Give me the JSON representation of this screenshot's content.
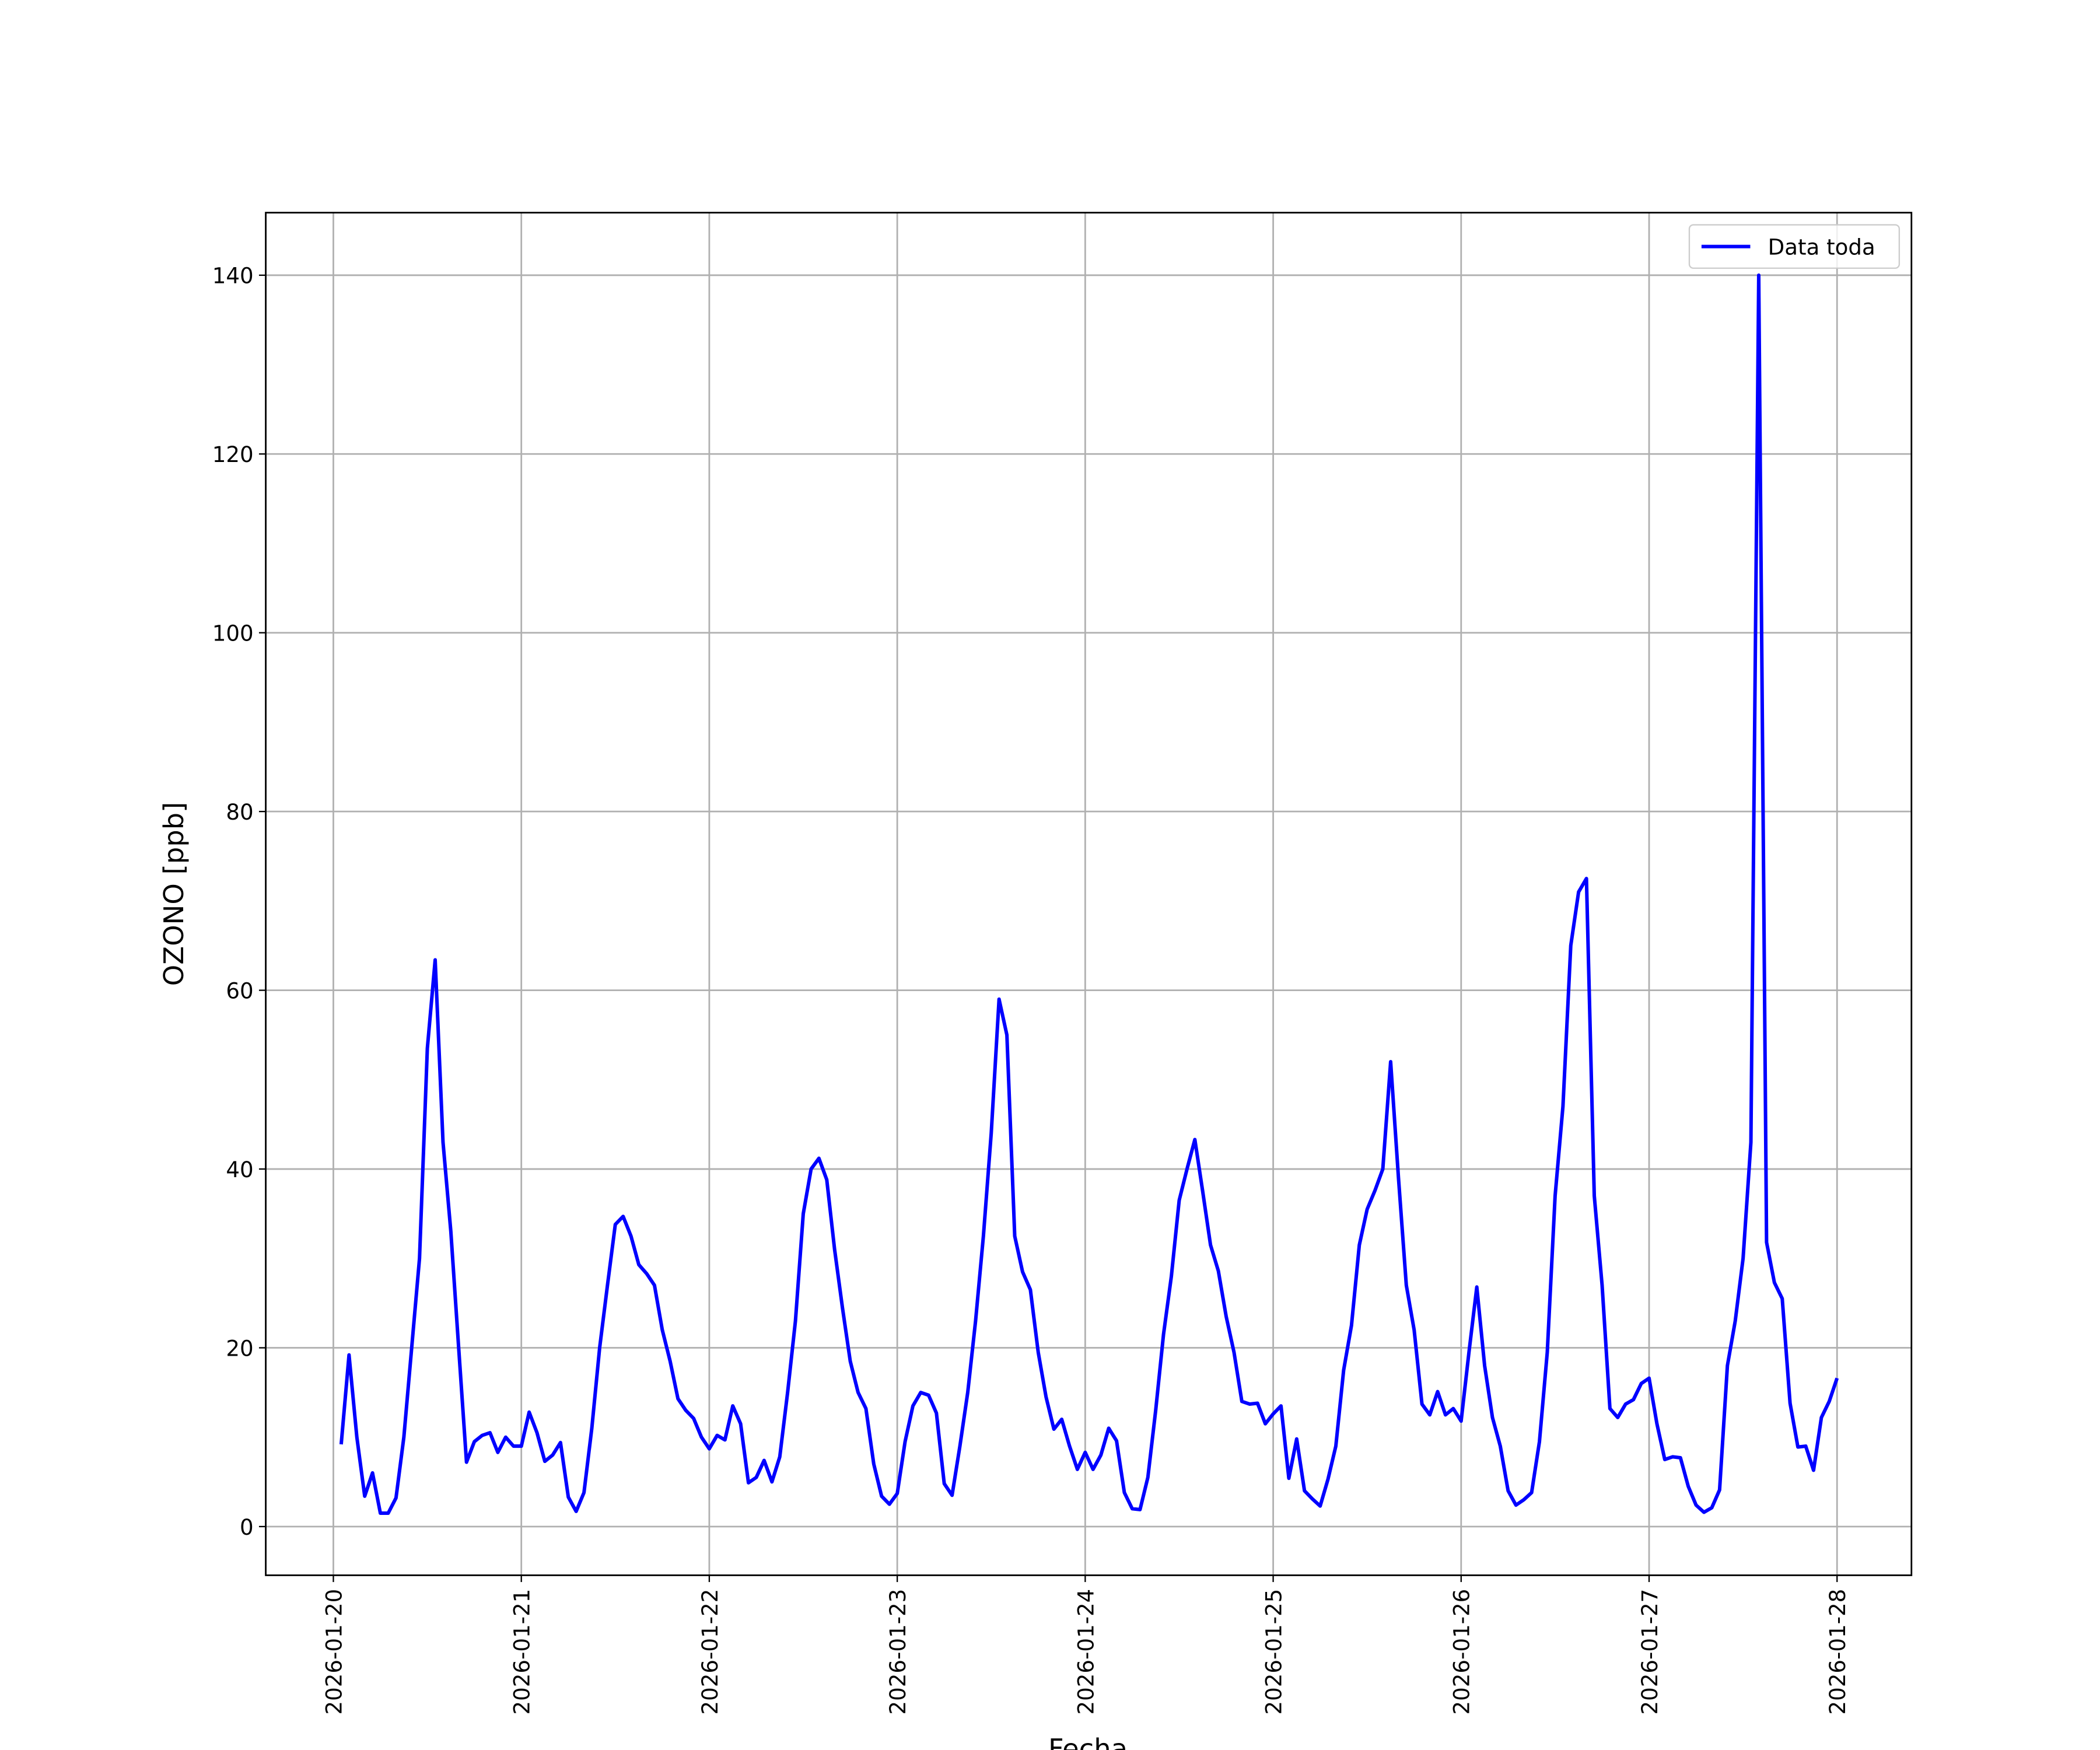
{
  "chart_data": {
    "type": "line",
    "xlabel": "Fecha",
    "ylabel": "OZONO [ppb]",
    "x": [
      "2026-01-20 01:00",
      "2026-01-20 02:00",
      "2026-01-20 03:00",
      "2026-01-20 04:00",
      "2026-01-20 05:00",
      "2026-01-20 06:00",
      "2026-01-20 07:00",
      "2026-01-20 08:00",
      "2026-01-20 09:00",
      "2026-01-20 10:00",
      "2026-01-20 11:00",
      "2026-01-20 12:00",
      "2026-01-20 13:00",
      "2026-01-20 14:00",
      "2026-01-20 15:00",
      "2026-01-20 16:00",
      "2026-01-20 17:00",
      "2026-01-20 18:00",
      "2026-01-20 19:00",
      "2026-01-20 20:00",
      "2026-01-20 21:00",
      "2026-01-20 22:00",
      "2026-01-20 23:00",
      "2026-01-21 00:00",
      "2026-01-21 01:00",
      "2026-01-21 02:00",
      "2026-01-21 03:00",
      "2026-01-21 04:00",
      "2026-01-21 05:00",
      "2026-01-21 06:00",
      "2026-01-21 07:00",
      "2026-01-21 08:00",
      "2026-01-21 09:00",
      "2026-01-21 10:00",
      "2026-01-21 11:00",
      "2026-01-21 12:00",
      "2026-01-21 13:00",
      "2026-01-21 14:00",
      "2026-01-21 15:00",
      "2026-01-21 16:00",
      "2026-01-21 17:00",
      "2026-01-21 18:00",
      "2026-01-21 19:00",
      "2026-01-21 20:00",
      "2026-01-21 21:00",
      "2026-01-21 22:00",
      "2026-01-21 23:00",
      "2026-01-22 00:00",
      "2026-01-22 01:00",
      "2026-01-22 02:00",
      "2026-01-22 03:00",
      "2026-01-22 04:00",
      "2026-01-22 05:00",
      "2026-01-22 06:00",
      "2026-01-22 07:00",
      "2026-01-22 08:00",
      "2026-01-22 09:00",
      "2026-01-22 10:00",
      "2026-01-22 11:00",
      "2026-01-22 12:00",
      "2026-01-22 13:00",
      "2026-01-22 14:00",
      "2026-01-22 15:00",
      "2026-01-22 16:00",
      "2026-01-22 17:00",
      "2026-01-22 18:00",
      "2026-01-22 19:00",
      "2026-01-22 20:00",
      "2026-01-22 21:00",
      "2026-01-22 22:00",
      "2026-01-22 23:00",
      "2026-01-23 00:00",
      "2026-01-23 01:00",
      "2026-01-23 02:00",
      "2026-01-23 03:00",
      "2026-01-23 04:00",
      "2026-01-23 05:00",
      "2026-01-23 06:00",
      "2026-01-23 07:00",
      "2026-01-23 08:00",
      "2026-01-23 09:00",
      "2026-01-23 10:00",
      "2026-01-23 11:00",
      "2026-01-23 12:00",
      "2026-01-23 13:00",
      "2026-01-23 14:00",
      "2026-01-23 15:00",
      "2026-01-23 16:00",
      "2026-01-23 17:00",
      "2026-01-23 18:00",
      "2026-01-23 19:00",
      "2026-01-23 20:00",
      "2026-01-23 21:00",
      "2026-01-23 22:00",
      "2026-01-23 23:00",
      "2026-01-24 00:00",
      "2026-01-24 01:00",
      "2026-01-24 02:00",
      "2026-01-24 03:00",
      "2026-01-24 04:00",
      "2026-01-24 05:00",
      "2026-01-24 06:00",
      "2026-01-24 07:00",
      "2026-01-24 08:00",
      "2026-01-24 09:00",
      "2026-01-24 10:00",
      "2026-01-24 11:00",
      "2026-01-24 12:00",
      "2026-01-24 13:00",
      "2026-01-24 14:00",
      "2026-01-24 15:00",
      "2026-01-24 16:00",
      "2026-01-24 17:00",
      "2026-01-24 18:00",
      "2026-01-24 19:00",
      "2026-01-24 20:00",
      "2026-01-24 21:00",
      "2026-01-24 22:00",
      "2026-01-24 23:00",
      "2026-01-25 00:00",
      "2026-01-25 01:00",
      "2026-01-25 02:00",
      "2026-01-25 03:00",
      "2026-01-25 04:00",
      "2026-01-25 05:00",
      "2026-01-25 06:00",
      "2026-01-25 07:00",
      "2026-01-25 08:00",
      "2026-01-25 09:00",
      "2026-01-25 10:00",
      "2026-01-25 11:00",
      "2026-01-25 12:00",
      "2026-01-25 13:00",
      "2026-01-25 14:00",
      "2026-01-25 15:00",
      "2026-01-25 16:00",
      "2026-01-25 17:00",
      "2026-01-25 18:00",
      "2026-01-25 19:00",
      "2026-01-25 20:00",
      "2026-01-25 21:00",
      "2026-01-25 22:00",
      "2026-01-25 23:00",
      "2026-01-26 00:00",
      "2026-01-26 01:00",
      "2026-01-26 02:00",
      "2026-01-26 03:00",
      "2026-01-26 04:00",
      "2026-01-26 05:00",
      "2026-01-26 06:00",
      "2026-01-26 07:00",
      "2026-01-26 08:00",
      "2026-01-26 09:00",
      "2026-01-26 10:00",
      "2026-01-26 11:00",
      "2026-01-26 12:00",
      "2026-01-26 13:00",
      "2026-01-26 14:00",
      "2026-01-26 15:00",
      "2026-01-26 16:00",
      "2026-01-26 17:00",
      "2026-01-26 18:00",
      "2026-01-26 19:00",
      "2026-01-26 20:00",
      "2026-01-26 21:00",
      "2026-01-26 22:00",
      "2026-01-26 23:00",
      "2026-01-27 00:00",
      "2026-01-27 01:00",
      "2026-01-27 02:00",
      "2026-01-27 03:00",
      "2026-01-27 04:00",
      "2026-01-27 05:00",
      "2026-01-27 06:00",
      "2026-01-27 07:00",
      "2026-01-27 08:00",
      "2026-01-27 09:00",
      "2026-01-27 10:00",
      "2026-01-27 11:00",
      "2026-01-27 12:00",
      "2026-01-27 13:00",
      "2026-01-27 14:00",
      "2026-01-27 15:00",
      "2026-01-27 16:00",
      "2026-01-27 17:00",
      "2026-01-27 18:00",
      "2026-01-27 19:00",
      "2026-01-27 20:00",
      "2026-01-27 21:00",
      "2026-01-27 22:00",
      "2026-01-27 23:00",
      "2026-01-28 00:00"
    ],
    "series": [
      {
        "name": "Data toda",
        "color": "#0000ff",
        "values": [
          9.2,
          19.2,
          10,
          3.4,
          6,
          1.5,
          1.5,
          3.2,
          10,
          20,
          30,
          53.5,
          63.4,
          43,
          33,
          20,
          7.2,
          9.5,
          10.2,
          10.5,
          8.3,
          10,
          9,
          9,
          12.8,
          10.5,
          7.3,
          8,
          9.4,
          3.3,
          1.7,
          3.8,
          11,
          20,
          27,
          33.8,
          34.7,
          32.5,
          29.3,
          28.3,
          27,
          22,
          18.5,
          14.3,
          13,
          12.1,
          10,
          8.7,
          10.2,
          9.7,
          13.5,
          11.5,
          4.9,
          5.5,
          7.4,
          5,
          7.8,
          15,
          23,
          35,
          40,
          41.2,
          38.8,
          31,
          24.5,
          18.5,
          15,
          13.2,
          7,
          3.4,
          2.5,
          3.7,
          9.5,
          13.5,
          15,
          14.7,
          12.7,
          4.8,
          3.5,
          9,
          15,
          23,
          32.5,
          44,
          59,
          55,
          32.5,
          28.5,
          26.5,
          19.5,
          14.5,
          10.9,
          12,
          9,
          6.4,
          8.3,
          6.4,
          8,
          11,
          9.6,
          3.8,
          2,
          1.9,
          5.5,
          13,
          21.5,
          28,
          36.5,
          40,
          43.3,
          37.5,
          31.5,
          28.6,
          23.5,
          19.5,
          14,
          13.7,
          13.8,
          11.5,
          12.6,
          13.5,
          5.4,
          9.8,
          4,
          3.1,
          2.3,
          5.3,
          9,
          17.5,
          22.5,
          31.5,
          35.5,
          37.6,
          40,
          52,
          39,
          27,
          22,
          13.7,
          12.5,
          15.1,
          12.5,
          13.2,
          11.8,
          19.5,
          26.8,
          18,
          12.2,
          9,
          4,
          2.4,
          3,
          3.8,
          9.5,
          19.5,
          37,
          47,
          65,
          71,
          72.5,
          37,
          27,
          13.2,
          12.2,
          13.7,
          14.2,
          16,
          16.6,
          11.5,
          7.5,
          7.8,
          7.7,
          4.5,
          2.4,
          1.6,
          2.1,
          4.1,
          18,
          23,
          30,
          43,
          140,
          31.8,
          27.3,
          25.5,
          13.8,
          8.9,
          9,
          6.3,
          12.2,
          14,
          16.6
        ]
      }
    ],
    "xlim": [
      "2026-01-19 15:22",
      "2026-01-28 09:30"
    ],
    "xticks": [
      "2026-01-20",
      "2026-01-21",
      "2026-01-22",
      "2026-01-23",
      "2026-01-24",
      "2026-01-25",
      "2026-01-26",
      "2026-01-27",
      "2026-01-28"
    ],
    "ylim": [
      -5.45,
      147
    ],
    "yticks": [
      0,
      20,
      40,
      60,
      80,
      100,
      120,
      140
    ],
    "grid": true,
    "legend": "upper right"
  }
}
